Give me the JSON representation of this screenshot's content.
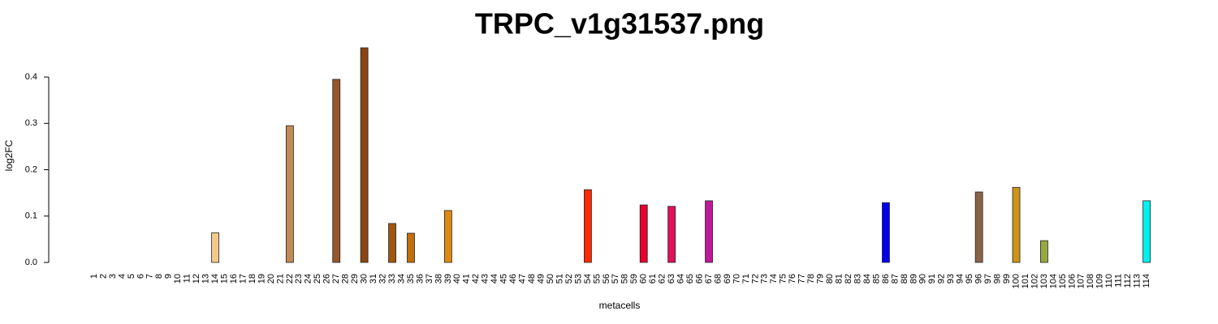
{
  "chart_data": {
    "type": "bar",
    "title": "TRPC_v1g31537.png",
    "x_label": "metacells",
    "y_label": "log2FC",
    "categories": [
      "1",
      "2",
      "3",
      "4",
      "5",
      "6",
      "7",
      "8",
      "9",
      "10",
      "11",
      "12",
      "13",
      "14",
      "15",
      "16",
      "17",
      "18",
      "19",
      "20",
      "21",
      "22",
      "23",
      "24",
      "25",
      "26",
      "27",
      "28",
      "29",
      "30",
      "31",
      "32",
      "33",
      "34",
      "35",
      "36",
      "37",
      "38",
      "39",
      "40",
      "41",
      "42",
      "43",
      "44",
      "45",
      "46",
      "47",
      "48",
      "49",
      "50",
      "51",
      "52",
      "53",
      "54",
      "55",
      "56",
      "57",
      "58",
      "59",
      "60",
      "61",
      "62",
      "63",
      "64",
      "65",
      "66",
      "67",
      "68",
      "69",
      "70",
      "71",
      "72",
      "73",
      "74",
      "75",
      "76",
      "77",
      "78",
      "79",
      "80",
      "81",
      "82",
      "83",
      "84",
      "85",
      "86",
      "87",
      "88",
      "89",
      "90",
      "91",
      "92",
      "93",
      "94",
      "95",
      "96",
      "97",
      "98",
      "99",
      "100",
      "101",
      "102",
      "103",
      "104",
      "105",
      "106",
      "107",
      "108",
      "109",
      "110",
      "111",
      "112",
      "113",
      "114"
    ],
    "values": [
      0,
      0,
      0,
      0,
      0,
      0,
      0,
      0,
      0,
      0,
      0,
      0,
      0,
      0.064,
      0,
      0,
      0,
      0,
      0,
      0,
      0,
      0.295,
      0,
      0,
      0,
      0,
      0.395,
      0,
      0,
      0.463,
      0,
      0,
      0.084,
      0,
      0.063,
      0,
      0,
      0,
      0.112,
      0,
      0,
      0,
      0,
      0,
      0,
      0,
      0,
      0,
      0,
      0,
      0,
      0,
      0,
      0.157,
      0,
      0,
      0,
      0,
      0,
      0.124,
      0,
      0,
      0.121,
      0,
      0,
      0,
      0.133,
      0,
      0,
      0,
      0,
      0,
      0,
      0,
      0,
      0,
      0,
      0,
      0,
      0,
      0,
      0,
      0,
      0,
      0,
      0.129,
      0,
      0,
      0,
      0,
      0,
      0,
      0,
      0,
      0,
      0.152,
      0,
      0,
      0,
      0.162,
      0,
      0,
      0.047,
      0,
      0,
      0,
      0,
      0,
      0,
      0,
      0,
      0,
      0,
      0.133
    ],
    "colors": [
      "#808080",
      "#808080",
      "#808080",
      "#808080",
      "#808080",
      "#808080",
      "#808080",
      "#808080",
      "#808080",
      "#808080",
      "#808080",
      "#808080",
      "#808080",
      "#f5c98a",
      "#808080",
      "#808080",
      "#808080",
      "#808080",
      "#808080",
      "#808080",
      "#808080",
      "#c48a55",
      "#808080",
      "#808080",
      "#808080",
      "#808080",
      "#96582a",
      "#808080",
      "#808080",
      "#8b4513",
      "#808080",
      "#808080",
      "#a0560f",
      "#808080",
      "#c0700a",
      "#808080",
      "#808080",
      "#808080",
      "#dd8a10",
      "#808080",
      "#808080",
      "#808080",
      "#808080",
      "#808080",
      "#808080",
      "#808080",
      "#808080",
      "#808080",
      "#808080",
      "#808080",
      "#808080",
      "#808080",
      "#808080",
      "#ff2a00",
      "#808080",
      "#808080",
      "#808080",
      "#808080",
      "#808080",
      "#e8002a",
      "#808080",
      "#808080",
      "#e0105a",
      "#808080",
      "#808080",
      "#808080",
      "#c0189a",
      "#808080",
      "#808080",
      "#808080",
      "#808080",
      "#808080",
      "#808080",
      "#808080",
      "#808080",
      "#808080",
      "#808080",
      "#808080",
      "#808080",
      "#808080",
      "#808080",
      "#808080",
      "#808080",
      "#808080",
      "#808080",
      "#0000ee",
      "#808080",
      "#808080",
      "#808080",
      "#808080",
      "#808080",
      "#808080",
      "#808080",
      "#808080",
      "#808080",
      "#8b6448",
      "#808080",
      "#808080",
      "#808080",
      "#cc9418",
      "#808080",
      "#808080",
      "#96a840",
      "#808080",
      "#808080",
      "#808080",
      "#808080",
      "#808080",
      "#808080",
      "#808080",
      "#808080",
      "#808080",
      "#808080",
      "#00f0f0"
    ],
    "ylim": [
      0,
      0.47
    ],
    "yticks": [
      {
        "value": 0,
        "label": "0.0"
      },
      0.1,
      0.2,
      0.3,
      0.4
    ]
  }
}
